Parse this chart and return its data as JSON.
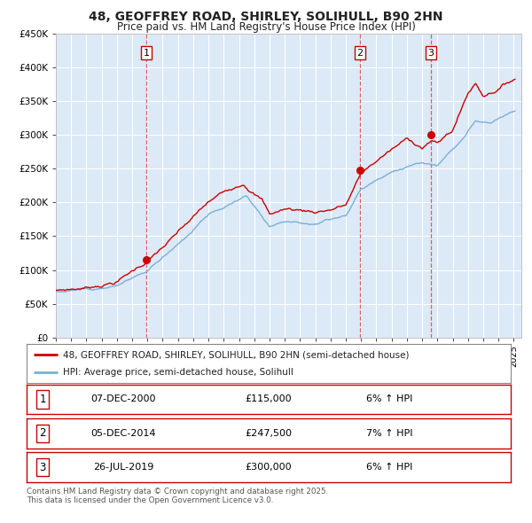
{
  "title": "48, GEOFFREY ROAD, SHIRLEY, SOLIHULL, B90 2HN",
  "subtitle": "Price paid vs. HM Land Registry's House Price Index (HPI)",
  "legend_line1": "48, GEOFFREY ROAD, SHIRLEY, SOLIHULL, B90 2HN (semi-detached house)",
  "legend_line2": "HPI: Average price, semi-detached house, Solihull",
  "footnote": "Contains HM Land Registry data © Crown copyright and database right 2025.\nThis data is licensed under the Open Government Licence v3.0.",
  "sale_points": [
    {
      "label": "1",
      "date": "07-DEC-2000",
      "price": 115000,
      "pct": "6%",
      "dir": "↑",
      "decimal_date": 2000.93
    },
    {
      "label": "2",
      "date": "05-DEC-2014",
      "price": 247500,
      "pct": "7%",
      "dir": "↑",
      "decimal_date": 2014.93
    },
    {
      "label": "3",
      "date": "26-JUL-2019",
      "price": 300000,
      "pct": "6%",
      "dir": "↑",
      "decimal_date": 2019.57
    }
  ],
  "ylim": [
    0,
    450000
  ],
  "xlim_start": 1995.0,
  "xlim_end": 2025.5,
  "yticks": [
    0,
    50000,
    100000,
    150000,
    200000,
    250000,
    300000,
    350000,
    400000,
    450000
  ],
  "ytick_labels": [
    "£0",
    "£50K",
    "£100K",
    "£150K",
    "£200K",
    "£250K",
    "£300K",
    "£350K",
    "£400K",
    "£450K"
  ],
  "fig_bg_color": "#ffffff",
  "plot_bg_color": "#dce9f7",
  "line_color_red": "#cc0000",
  "line_color_blue": "#7ab0d4",
  "grid_color": "#ffffff",
  "dashed_line_color": "#dd4444",
  "sale_marker_color": "#cc0000",
  "label_box_color": "#cc0000",
  "title_fontsize": 10,
  "subtitle_fontsize": 8.5
}
